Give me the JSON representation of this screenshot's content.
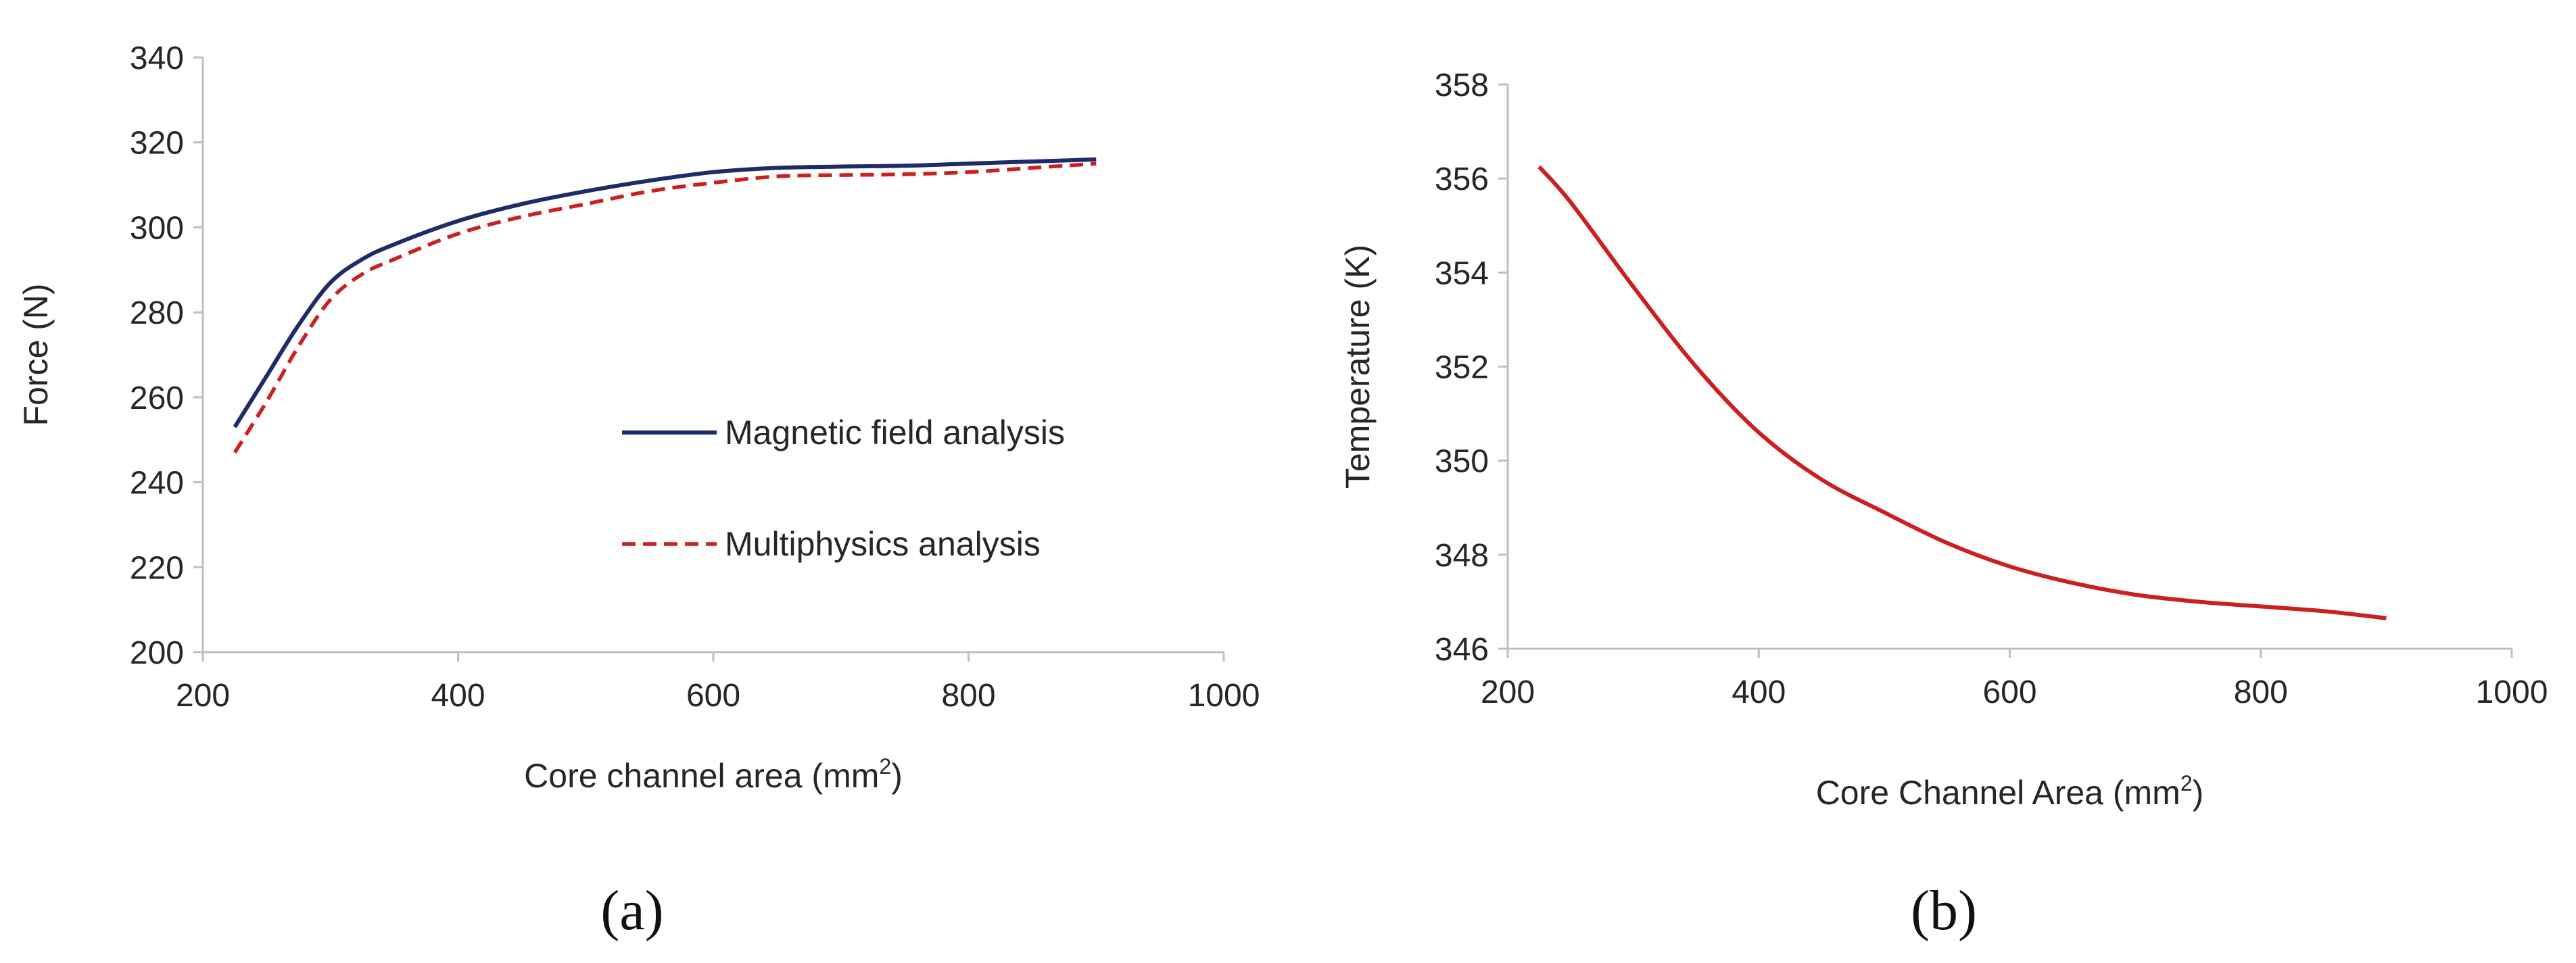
{
  "chart_data": [
    {
      "panel": "a",
      "type": "line",
      "caption": "(a)",
      "xlabel": "Core channel area (mm",
      "xlabel_sup": "2",
      "xlabel_close": ")",
      "ylabel": "Force (N)",
      "xlim": [
        200,
        1000
      ],
      "ylim": [
        200,
        340
      ],
      "xticks": [
        200,
        400,
        600,
        800,
        1000
      ],
      "yticks": [
        200,
        220,
        240,
        260,
        280,
        300,
        320,
        340
      ],
      "grid": false,
      "legend_position": "center-right",
      "series": [
        {
          "name": "Magnetic field analysis",
          "color": "#1f2a6b",
          "dash": "solid",
          "x": [
            225,
            250,
            275,
            300,
            325,
            350,
            400,
            450,
            500,
            550,
            600,
            650,
            700,
            750,
            800,
            850,
            900
          ],
          "y": [
            253,
            265,
            277,
            287,
            292.5,
            296,
            301.5,
            305.5,
            308.5,
            311,
            313,
            314,
            314.3,
            314.5,
            315,
            315.5,
            316
          ]
        },
        {
          "name": "Multiphysics analysis",
          "color": "#cc1f1f",
          "dash": "dashed",
          "x": [
            225,
            250,
            275,
            300,
            325,
            350,
            400,
            450,
            500,
            550,
            600,
            650,
            700,
            750,
            800,
            850,
            900
          ],
          "y": [
            247,
            259,
            272,
            283,
            289,
            292.5,
            298.5,
            302.5,
            305.5,
            308.5,
            310.5,
            312,
            312.3,
            312.5,
            313,
            314,
            315
          ]
        }
      ]
    },
    {
      "panel": "b",
      "type": "line",
      "caption": "(b)",
      "xlabel": "Core Channel Area (mm",
      "xlabel_sup": "2",
      "xlabel_close": ")",
      "ylabel": "Temperature (K)",
      "xlim": [
        200,
        1000
      ],
      "ylim": [
        346,
        358
      ],
      "xticks": [
        200,
        400,
        600,
        800,
        1000
      ],
      "yticks": [
        346,
        348,
        350,
        352,
        354,
        356,
        358
      ],
      "grid": false,
      "series": [
        {
          "name": "Temperature",
          "color": "#cc1f1f",
          "dash": "solid",
          "x": [
            225,
            250,
            300,
            350,
            400,
            450,
            500,
            550,
            600,
            650,
            700,
            750,
            800,
            850,
            900
          ],
          "y": [
            356.25,
            355.5,
            353.7,
            352.0,
            350.6,
            349.6,
            348.9,
            348.25,
            347.75,
            347.4,
            347.15,
            347.0,
            346.9,
            346.8,
            346.65
          ]
        }
      ]
    }
  ]
}
